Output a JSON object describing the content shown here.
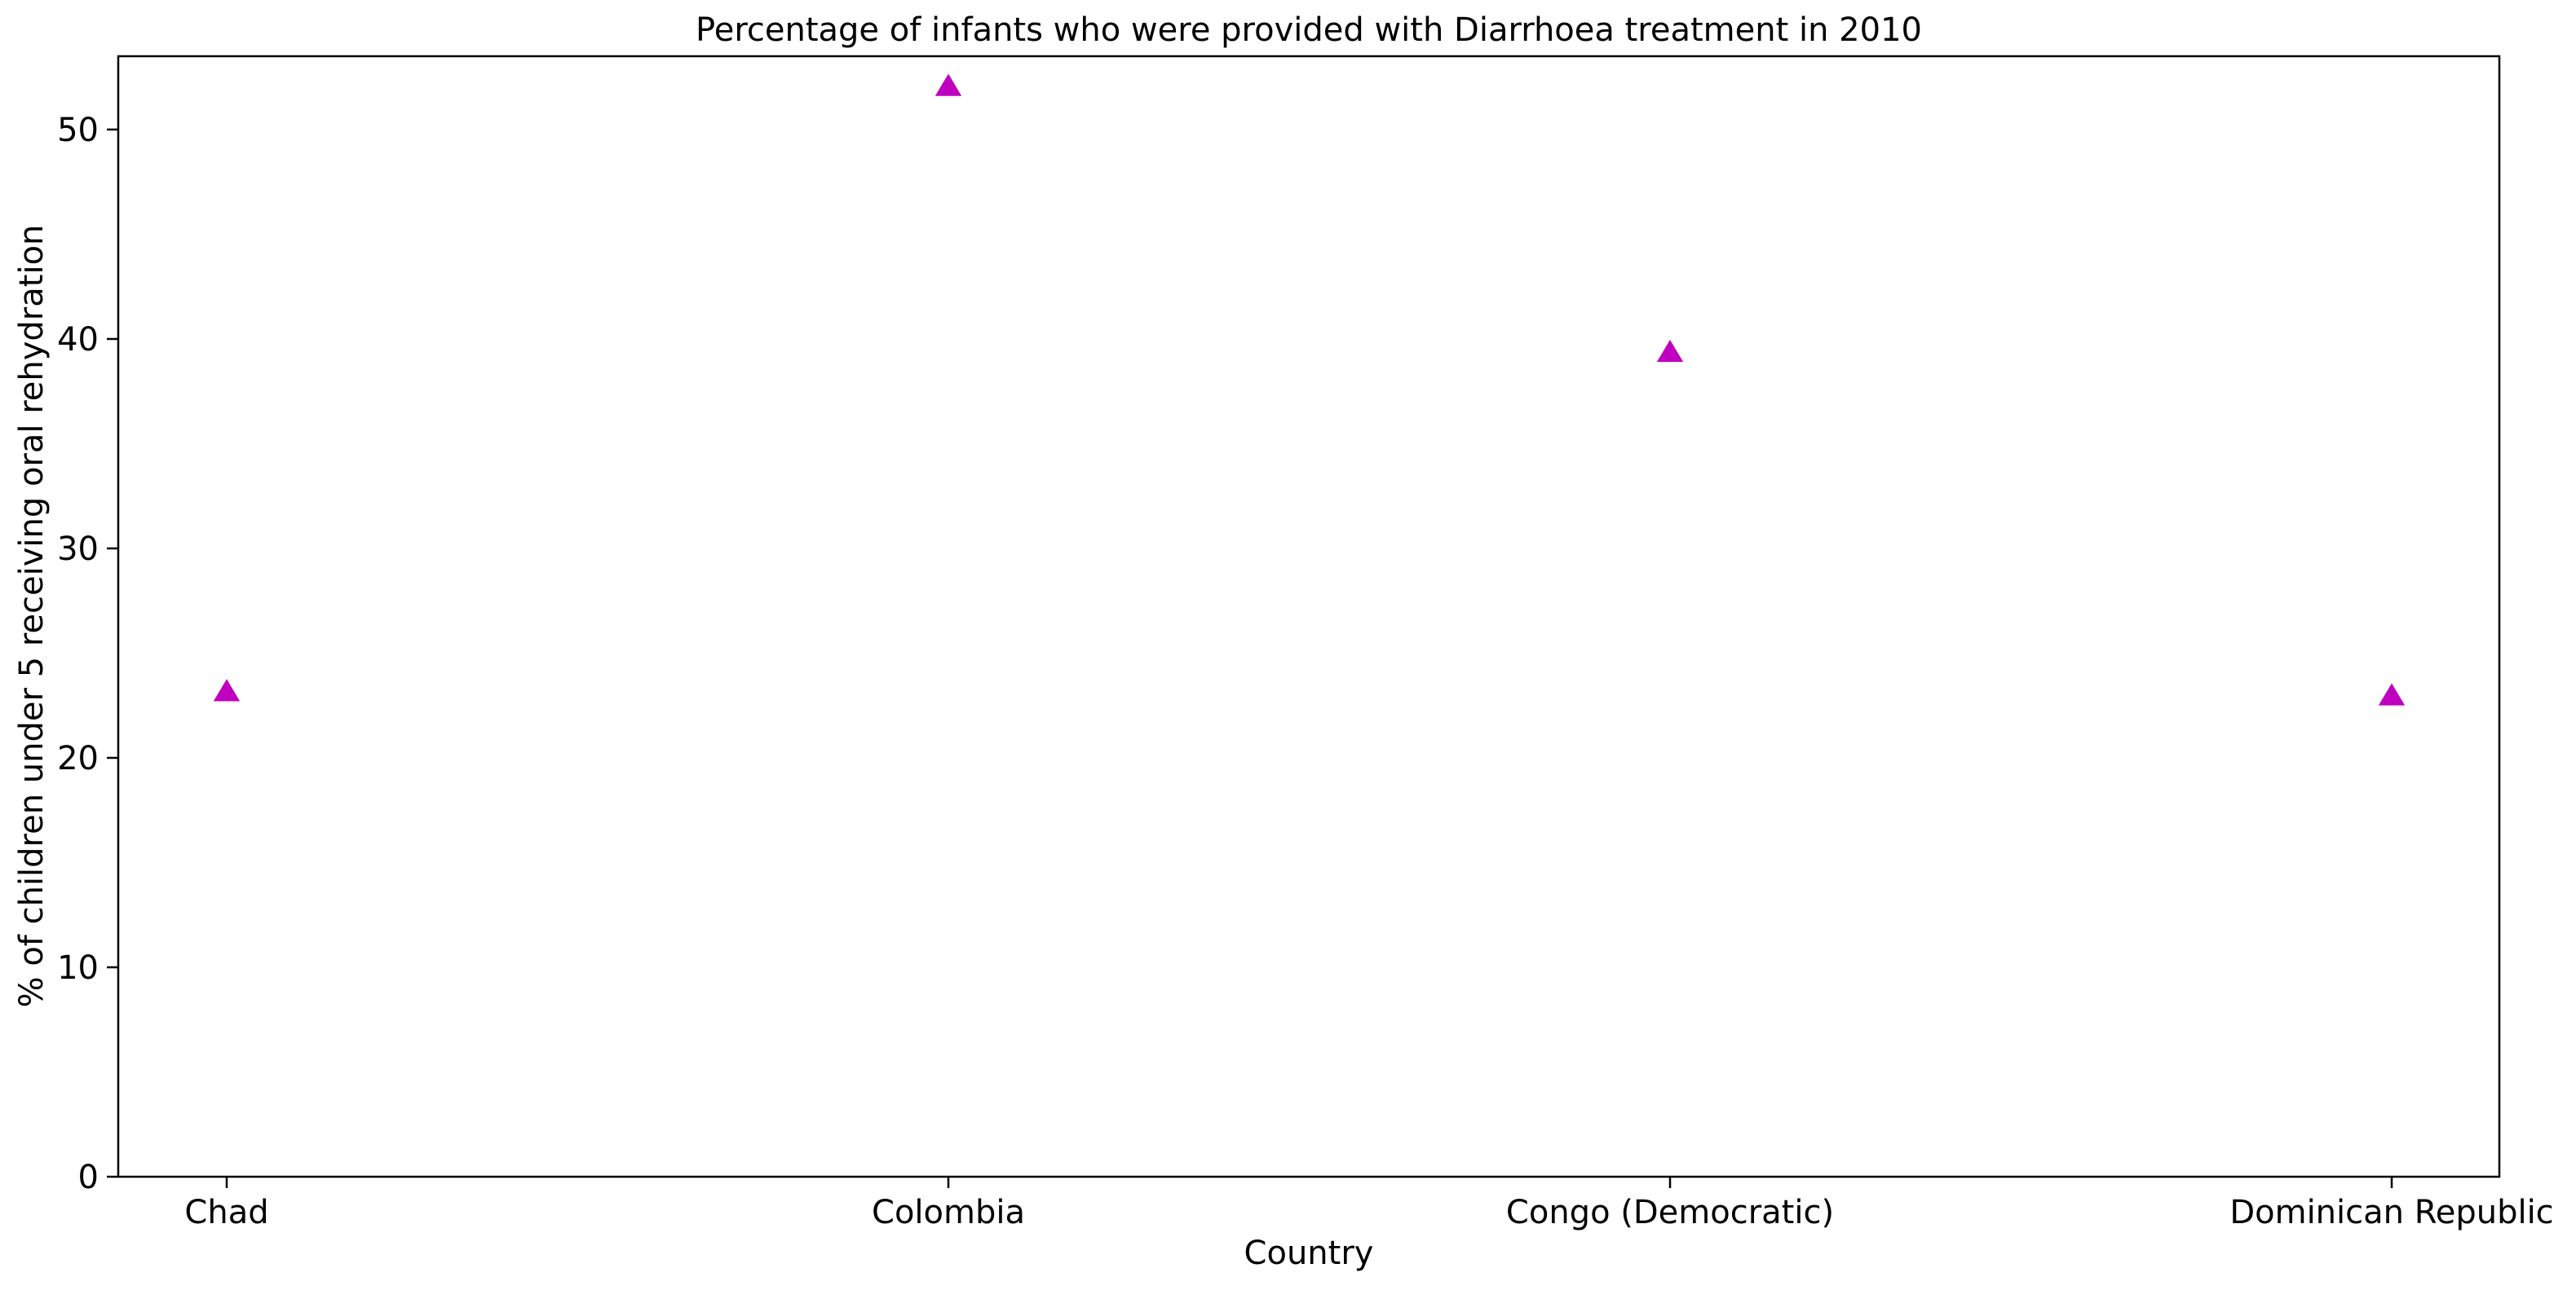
{
  "chart_data": {
    "type": "scatter",
    "title": "Percentage of infants who were provided with Diarrhoea treatment in 2010",
    "xlabel": "Country",
    "ylabel": "% of children under 5 receiving oral rehydration",
    "categories": [
      "Chad",
      "Colombia",
      "Congo (Democratic)",
      "Dominican Republic"
    ],
    "series": [
      {
        "values": [
          23.1,
          52.0,
          39.3,
          22.9
        ],
        "marker": "triangle",
        "color": "#bf00bf"
      }
    ],
    "ylim": [
      0,
      53.5
    ],
    "yticks": [
      0,
      10,
      20,
      30,
      40,
      50
    ],
    "grid": false,
    "legend": "none"
  }
}
